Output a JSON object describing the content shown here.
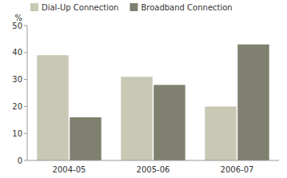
{
  "chart_data": {
    "type": "bar",
    "categories": [
      "2004-05",
      "2005-06",
      "2006-07"
    ],
    "series": [
      {
        "name": "Dial-Up Connection",
        "color": "#c8c8b4",
        "values": [
          39,
          31,
          20
        ]
      },
      {
        "name": "Broadband Connection",
        "color": "#808070",
        "values": [
          16,
          28,
          43
        ]
      }
    ],
    "ylabel": "%",
    "ylim": [
      0,
      50
    ],
    "yticks": [
      0,
      10,
      20,
      30,
      40,
      50
    ],
    "grid": false,
    "legend": "upper left"
  }
}
